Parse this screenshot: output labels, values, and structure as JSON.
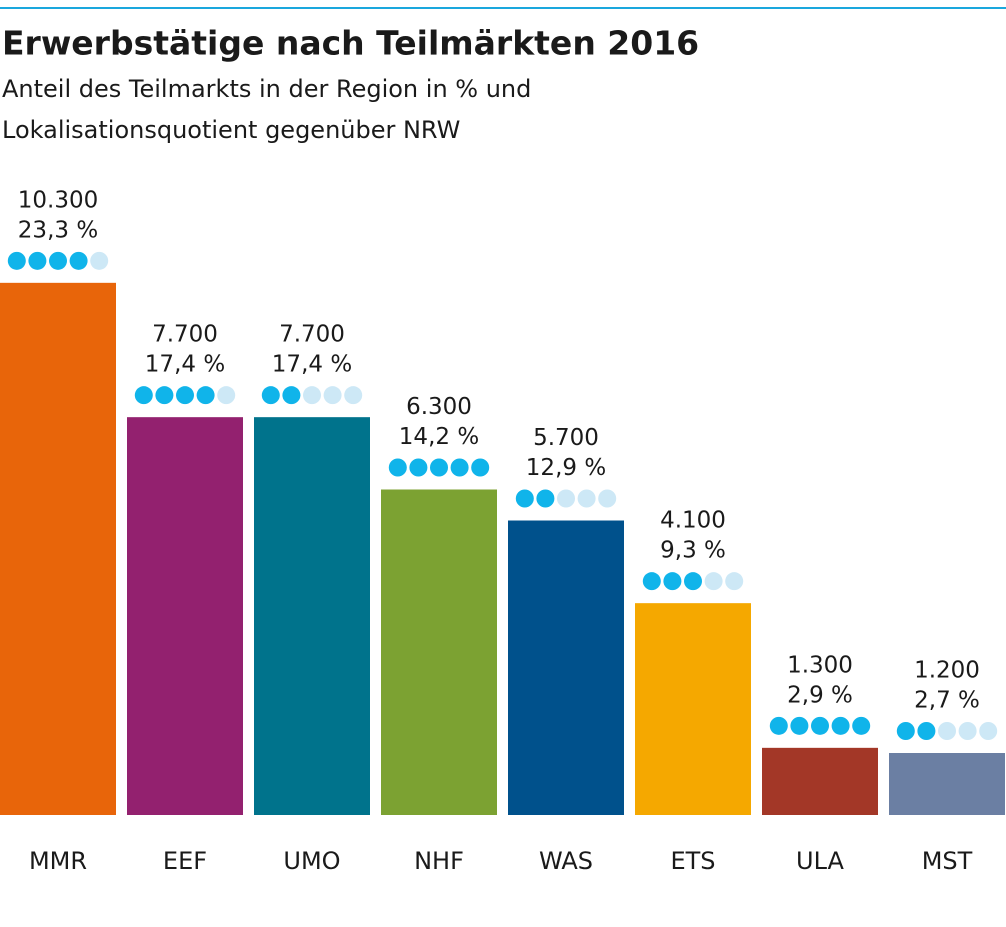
{
  "chart_data": {
    "type": "bar",
    "title": "Erwerbstätige nach Teilmärkten 2016",
    "subtitle": [
      "Anteil des Teilmarkts in der Region in % und",
      "Lokalisationsquotient gegenüber NRW"
    ],
    "categories": [
      "MMR",
      "EEF",
      "UMO",
      "NHF",
      "WAS",
      "ETS",
      "ULA",
      "MST"
    ],
    "values": [
      10300,
      7700,
      7700,
      6300,
      5700,
      4100,
      1300,
      1200
    ],
    "value_labels": [
      "10.300",
      "7.700",
      "7.700",
      "6.300",
      "5.700",
      "4.100",
      "1.300",
      "1.200"
    ],
    "shares": [
      23.3,
      17.4,
      17.4,
      14.2,
      12.9,
      9.3,
      2.9,
      2.7
    ],
    "share_labels": [
      "23,3 %",
      "17,4 %",
      "17,4 %",
      "14,2 %",
      "12,9 %",
      "9,3 %",
      "2,9 %",
      "2,7 %"
    ],
    "quotient_dots": [
      4,
      4,
      2,
      5,
      2,
      3,
      5,
      2
    ],
    "dots_max": 5,
    "colors": [
      "#e8650a",
      "#93216f",
      "#00738c",
      "#7ca232",
      "#00518c",
      "#f5a800",
      "#a33727",
      "#6b7fa3"
    ],
    "dot_color": "#10b4ea",
    "dot_empty_color": "#cde8f6",
    "ylim": [
      0,
      12000
    ]
  }
}
